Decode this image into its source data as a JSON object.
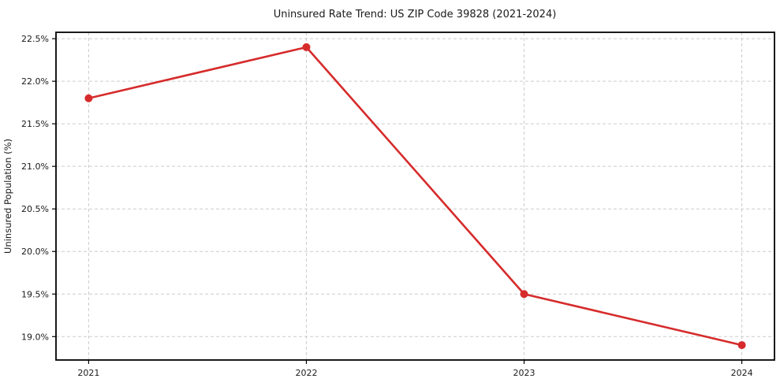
{
  "chart_data": {
    "type": "line",
    "title": "Uninsured Rate Trend: US ZIP Code 39828 (2021-2024)",
    "xlabel": "",
    "ylabel": "Uninsured Population (%)",
    "x": [
      2021,
      2022,
      2023,
      2024
    ],
    "x_tick_labels": [
      "2021",
      "2022",
      "2023",
      "2024"
    ],
    "values": [
      21.8,
      22.4,
      19.5,
      18.9
    ],
    "y_ticks": [
      19.0,
      19.5,
      20.0,
      20.5,
      21.0,
      21.5,
      22.0,
      22.5
    ],
    "y_tick_labels": [
      "19.0%",
      "19.5%",
      "20.0%",
      "20.5%",
      "21.0%",
      "21.5%",
      "22.0%",
      "22.5%"
    ],
    "xlim": [
      2020.85,
      2024.15
    ],
    "ylim": [
      18.725,
      22.575
    ],
    "grid": true,
    "grid_style": "dashed",
    "legend": false,
    "line_color": "#d62b2b",
    "grid_color": "#cccccc",
    "axis_color": "#000000",
    "marker": "circle"
  }
}
